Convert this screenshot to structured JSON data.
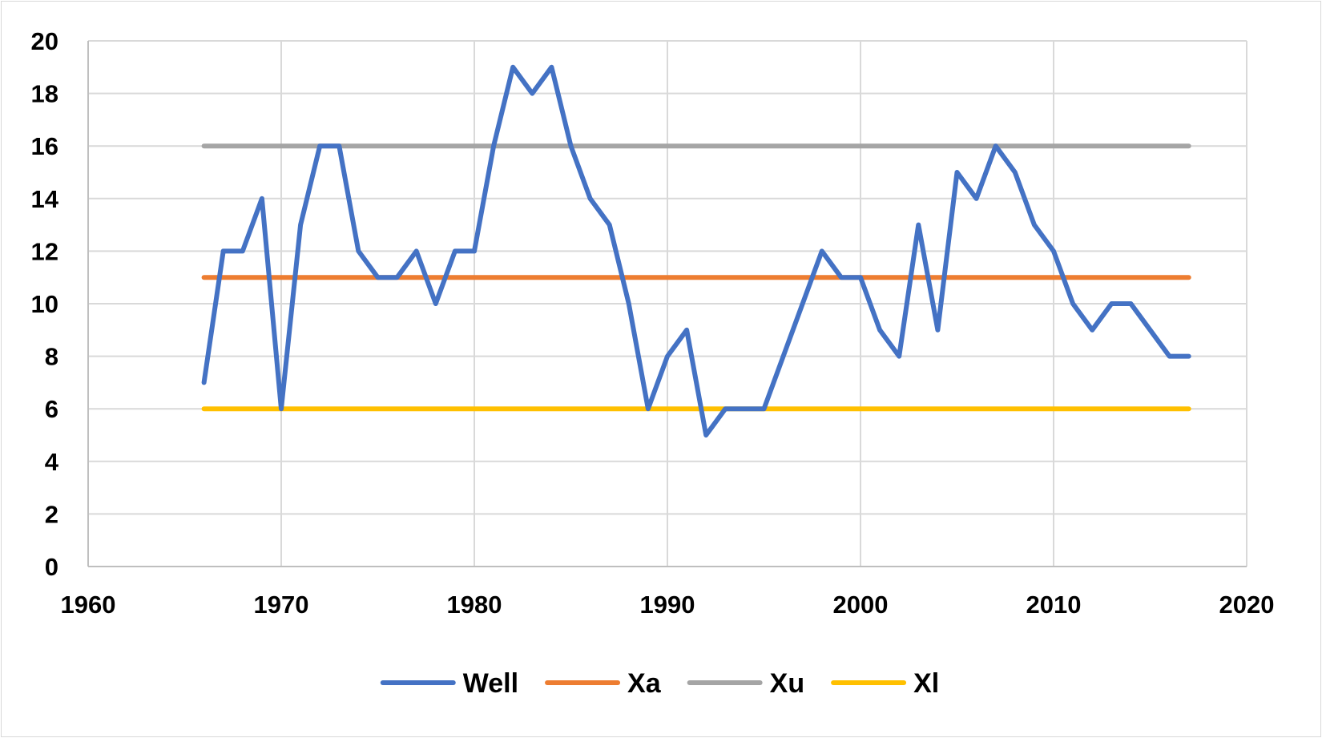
{
  "chart_data": {
    "type": "line",
    "title": "",
    "xlabel": "",
    "ylabel": "",
    "xlim": [
      1960,
      2020
    ],
    "ylim": [
      0,
      20
    ],
    "x_ticks": [
      1960,
      1970,
      1980,
      1990,
      2000,
      2010,
      2020
    ],
    "y_ticks": [
      0,
      2,
      4,
      6,
      8,
      10,
      12,
      14,
      16,
      18,
      20
    ],
    "grid": true,
    "legend_position": "bottom",
    "x": [
      1966,
      1967,
      1968,
      1969,
      1970,
      1971,
      1972,
      1973,
      1974,
      1975,
      1976,
      1977,
      1978,
      1979,
      1980,
      1981,
      1982,
      1983,
      1984,
      1985,
      1986,
      1987,
      1988,
      1989,
      1990,
      1991,
      1992,
      1993,
      1994,
      1995,
      1996,
      1997,
      1998,
      1999,
      2000,
      2001,
      2002,
      2003,
      2004,
      2005,
      2006,
      2007,
      2008,
      2009,
      2010,
      2011,
      2012,
      2013,
      2014,
      2015,
      2016,
      2017
    ],
    "series": [
      {
        "name": "Well",
        "color": "#4472c4",
        "values": [
          7,
          12,
          12,
          14,
          6,
          13,
          16,
          16,
          12,
          11,
          11,
          12,
          10,
          12,
          12,
          16,
          19,
          18,
          19,
          16,
          14,
          13,
          10,
          6,
          8,
          9,
          5,
          6,
          6,
          6,
          8,
          10,
          12,
          11,
          11,
          9,
          8,
          13,
          9,
          15,
          14,
          16,
          15,
          13,
          12,
          10,
          9,
          10,
          10,
          9,
          8,
          8
        ]
      },
      {
        "name": "Xa",
        "color": "#ed7d31",
        "values": [
          11,
          11,
          11,
          11,
          11,
          11,
          11,
          11,
          11,
          11,
          11,
          11,
          11,
          11,
          11,
          11,
          11,
          11,
          11,
          11,
          11,
          11,
          11,
          11,
          11,
          11,
          11,
          11,
          11,
          11,
          11,
          11,
          11,
          11,
          11,
          11,
          11,
          11,
          11,
          11,
          11,
          11,
          11,
          11,
          11,
          11,
          11,
          11,
          11,
          11,
          11,
          11
        ]
      },
      {
        "name": "Xu",
        "color": "#a5a5a5",
        "values": [
          16,
          16,
          16,
          16,
          16,
          16,
          16,
          16,
          16,
          16,
          16,
          16,
          16,
          16,
          16,
          16,
          16,
          16,
          16,
          16,
          16,
          16,
          16,
          16,
          16,
          16,
          16,
          16,
          16,
          16,
          16,
          16,
          16,
          16,
          16,
          16,
          16,
          16,
          16,
          16,
          16,
          16,
          16,
          16,
          16,
          16,
          16,
          16,
          16,
          16,
          16,
          16
        ]
      },
      {
        "name": "Xl",
        "color": "#ffc000",
        "values": [
          6,
          6,
          6,
          6,
          6,
          6,
          6,
          6,
          6,
          6,
          6,
          6,
          6,
          6,
          6,
          6,
          6,
          6,
          6,
          6,
          6,
          6,
          6,
          6,
          6,
          6,
          6,
          6,
          6,
          6,
          6,
          6,
          6,
          6,
          6,
          6,
          6,
          6,
          6,
          6,
          6,
          6,
          6,
          6,
          6,
          6,
          6,
          6,
          6,
          6,
          6,
          6
        ]
      }
    ]
  }
}
